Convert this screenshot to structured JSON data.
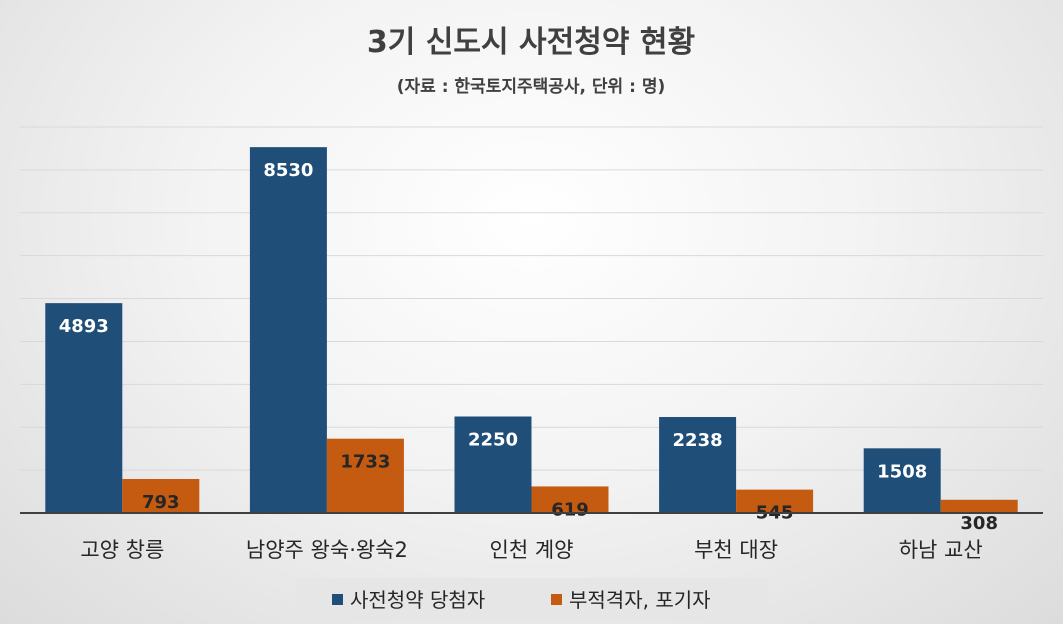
{
  "chart_data": {
    "type": "bar",
    "title": "3기 신도시 사전청약 현황",
    "subtitle": "(자료 : 한국토지주택공사, 단위 : 명)",
    "categories": [
      "고양 창릉",
      "남양주 왕숙·왕숙2",
      "인천 계양",
      "부천 대장",
      "하남 교산"
    ],
    "series": [
      {
        "name": "사전청약 당첨자",
        "values": [
          4893,
          8530,
          2250,
          2238,
          1508
        ],
        "color": "#1f4e79"
      },
      {
        "name": "부적격자, 포기자",
        "values": [
          793,
          1733,
          619,
          545,
          308
        ],
        "color": "#c55a11"
      }
    ],
    "ylim": [
      0,
      9000
    ],
    "grid": true,
    "legend": "bottom",
    "data_labels": true
  }
}
